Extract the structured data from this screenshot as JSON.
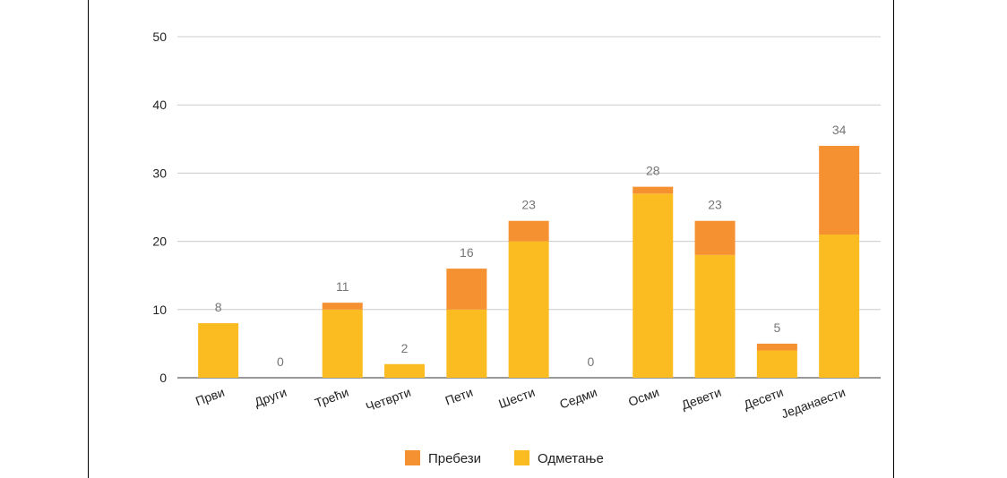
{
  "chart_data": {
    "type": "bar",
    "stacked": true,
    "categories": [
      "Први",
      "Други",
      "Трећи",
      "Четврти",
      "Пети",
      "Шести",
      "Седми",
      "Осми",
      "Девети",
      "Десети",
      "Једанаести"
    ],
    "series": [
      {
        "name": "Одметање",
        "values": [
          8,
          0,
          10,
          2,
          10,
          20,
          0,
          27,
          18,
          4,
          21
        ],
        "color": "#fbbc22"
      },
      {
        "name": "Пребези",
        "values": [
          0,
          0,
          1,
          0,
          6,
          3,
          0,
          1,
          5,
          1,
          13
        ],
        "color": "#f69132"
      }
    ],
    "totals": [
      8,
      0,
      11,
      2,
      16,
      23,
      0,
      28,
      23,
      5,
      34
    ],
    "yticks": [
      0,
      10,
      20,
      30,
      40,
      50
    ],
    "ylim": [
      0,
      50
    ],
    "legend_order": [
      "Пребези",
      "Одметање"
    ],
    "legend_position": "bottom",
    "grid": true,
    "colors": {
      "gridline": "#cccccc",
      "baseline": "#333333",
      "data_label": "#757575"
    }
  }
}
